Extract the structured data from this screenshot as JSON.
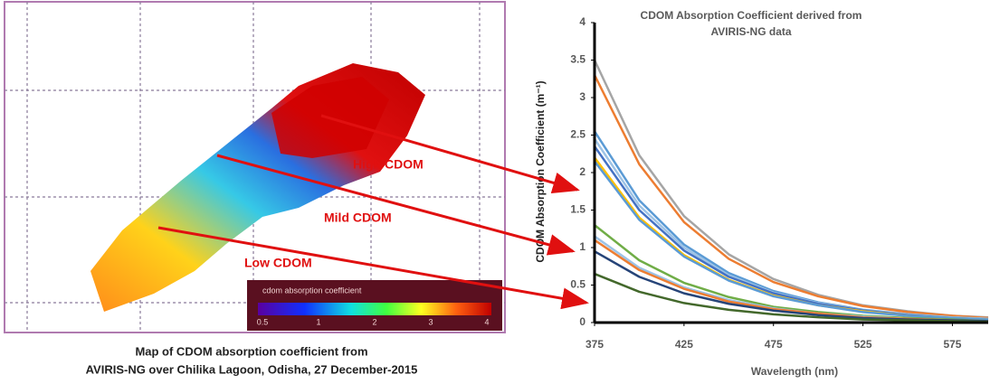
{
  "map": {
    "labels": [
      "High CDOM",
      "Mild CDOM",
      "Low CDOM"
    ],
    "colorbar_title": "cdom absorption coefficient",
    "colorbar_ticks": [
      0.5,
      1,
      2,
      3,
      4
    ],
    "caption": [
      "Map of CDOM absorption coefficient from",
      "AVIRIS-NG  over Chilika Lagoon, Odisha, 27 December-2015"
    ]
  },
  "chart_data": {
    "type": "line",
    "title": "CDOM Absorption  Coefficient derived from AVIRIS-NG  data",
    "x_label": "Wavelength (nm)",
    "y_label": "CDOM Absorption  Coefficient  (m⁻¹)",
    "x": [
      375,
      400,
      425,
      450,
      475,
      500,
      525,
      550,
      575,
      595
    ],
    "xlim": [
      375,
      595
    ],
    "ylim": [
      0,
      4
    ],
    "xticks": [
      375,
      425,
      475,
      525,
      575
    ],
    "yticks": [
      0,
      0.5,
      1,
      1.5,
      2,
      2.5,
      3,
      3.5,
      4
    ],
    "series": [
      {
        "color": "#a5a5a5",
        "values": [
          3.5,
          2.23,
          1.42,
          0.91,
          0.58,
          0.37,
          0.23,
          0.15,
          0.09,
          0.07
        ]
      },
      {
        "color": "#ed7d31",
        "values": [
          3.3,
          2.11,
          1.34,
          0.85,
          0.54,
          0.35,
          0.22,
          0.14,
          0.09,
          0.06
        ]
      },
      {
        "color": "#5b9bd5",
        "values": [
          2.55,
          1.63,
          1.04,
          0.66,
          0.42,
          0.27,
          0.17,
          0.11,
          0.07,
          0.05
        ]
      },
      {
        "color": "#9dc3e6",
        "values": [
          2.45,
          1.56,
          1.0,
          0.63,
          0.4,
          0.26,
          0.16,
          0.11,
          0.07,
          0.05
        ]
      },
      {
        "color": "#4472c4",
        "values": [
          2.35,
          1.5,
          0.96,
          0.61,
          0.39,
          0.25,
          0.16,
          0.1,
          0.06,
          0.04
        ]
      },
      {
        "color": "#ffc000",
        "values": [
          2.2,
          1.4,
          0.9,
          0.57,
          0.36,
          0.23,
          0.15,
          0.09,
          0.06,
          0.04
        ]
      },
      {
        "color": "#5b9bd5",
        "values": [
          2.15,
          1.37,
          0.88,
          0.56,
          0.35,
          0.23,
          0.14,
          0.09,
          0.06,
          0.04
        ]
      },
      {
        "color": "#70ad47",
        "values": [
          1.3,
          0.83,
          0.53,
          0.34,
          0.21,
          0.14,
          0.09,
          0.06,
          0.04,
          0.02
        ]
      },
      {
        "color": "#9dc3e6",
        "values": [
          1.15,
          0.73,
          0.47,
          0.3,
          0.19,
          0.12,
          0.08,
          0.05,
          0.03,
          0.02
        ]
      },
      {
        "color": "#ed7d31",
        "values": [
          1.1,
          0.7,
          0.45,
          0.28,
          0.18,
          0.12,
          0.07,
          0.05,
          0.03,
          0.02
        ]
      },
      {
        "color": "#264478",
        "values": [
          0.95,
          0.61,
          0.39,
          0.25,
          0.16,
          0.1,
          0.06,
          0.04,
          0.03,
          0.02
        ]
      },
      {
        "color": "#43682b",
        "values": [
          0.65,
          0.41,
          0.26,
          0.17,
          0.11,
          0.07,
          0.04,
          0.03,
          0.02,
          0.01
        ]
      }
    ]
  }
}
